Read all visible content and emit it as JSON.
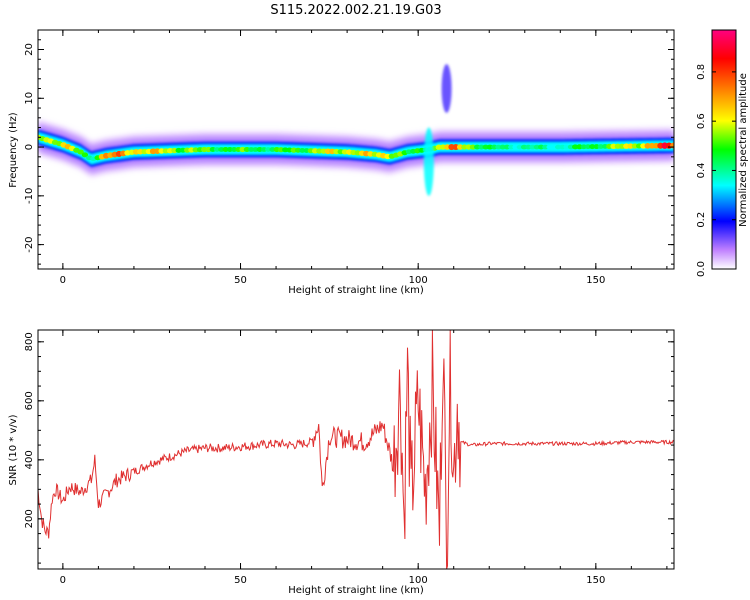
{
  "title": "S115.2022.002.21.19.G03",
  "chart_data": [
    {
      "type": "heatmap",
      "xlabel": "Height of straight line (km)",
      "ylabel": "Frequency (Hz)",
      "xlim": [
        -7,
        172
      ],
      "ylim": [
        -25,
        24
      ],
      "xticks": [
        0,
        50,
        100,
        150
      ],
      "yticks": [
        -20,
        -10,
        0,
        10,
        20
      ],
      "colorbar": {
        "label": "Normalized spectral amplitude",
        "range": [
          0,
          0.97
        ],
        "ticks": [
          "0.0",
          "0.2",
          "0.4",
          "0.6",
          "0.8"
        ],
        "colors": [
          "#ffffff",
          "#c080ff",
          "#0000ff",
          "#00ffff",
          "#00ff00",
          "#ffff00",
          "#ff8000",
          "#ff0000",
          "#ff0080"
        ]
      },
      "ridge": {
        "x": [
          -7,
          0,
          5,
          8,
          12,
          20,
          40,
          60,
          80,
          88,
          92,
          97,
          103,
          106,
          110,
          120,
          140,
          160,
          170
        ],
        "frequency": [
          2,
          0.5,
          -1,
          -2.5,
          -1.8,
          -1,
          -0.5,
          -0.5,
          -1,
          -1.5,
          -2,
          -1,
          -0.5,
          0,
          0,
          0,
          0,
          0.2,
          0.3
        ],
        "amplitude": [
          0.7,
          0.75,
          0.6,
          0.5,
          0.85,
          0.8,
          0.6,
          0.55,
          0.75,
          0.7,
          0.8,
          0.5,
          0.6,
          0.7,
          0.85,
          0.5,
          0.45,
          0.7,
          0.95
        ]
      },
      "features": [
        {
          "x": 103,
          "frequency_range": [
            -10,
            4
          ],
          "amplitude": 0.35
        },
        {
          "x": 108,
          "frequency_range": [
            7,
            17
          ],
          "amplitude": 0.15
        }
      ]
    },
    {
      "type": "line",
      "xlabel": "Height of straight line (km)",
      "ylabel": "SNR (10 * v/v)",
      "xlim": [
        -7,
        172
      ],
      "ylim": [
        30,
        840
      ],
      "xticks": [
        0,
        50,
        100,
        150
      ],
      "yticks": [
        200,
        400,
        600,
        800
      ],
      "series_color": "#e03030",
      "x": [
        -7,
        -6,
        -5,
        -4,
        -3,
        -2,
        0,
        2,
        5,
        8,
        9,
        10,
        12,
        15,
        20,
        25,
        30,
        35,
        40,
        45,
        50,
        55,
        60,
        65,
        70,
        72,
        73,
        75,
        80,
        85,
        90,
        93,
        95,
        96,
        97,
        98,
        100,
        102,
        104,
        106,
        107,
        108,
        109,
        110,
        111,
        112,
        115,
        120,
        130,
        140,
        150,
        160,
        172
      ],
      "snr": [
        300,
        200,
        160,
        155,
        270,
        300,
        260,
        310,
        290,
        330,
        400,
        250,
        280,
        330,
        360,
        390,
        410,
        430,
        440,
        440,
        445,
        450,
        455,
        450,
        460,
        520,
        300,
        480,
        470,
        460,
        520,
        380,
        650,
        200,
        700,
        250,
        600,
        300,
        650,
        150,
        840,
        60,
        750,
        350,
        600,
        460,
        450,
        455,
        455,
        455,
        455,
        460,
        460
      ]
    }
  ]
}
